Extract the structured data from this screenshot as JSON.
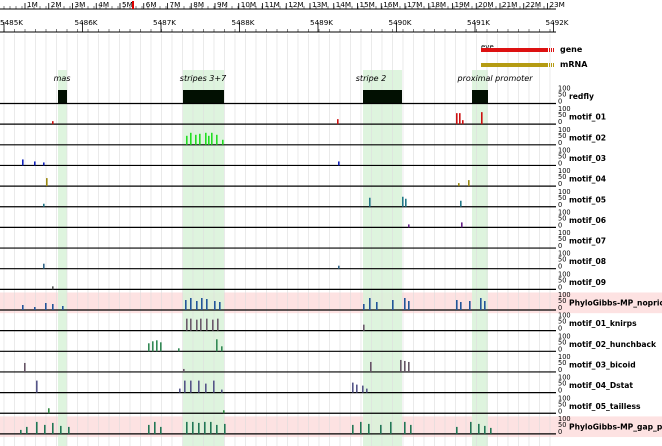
{
  "chromosome_ruler": {
    "labels": [
      "1M",
      "2M",
      "3M",
      "4M",
      "5M",
      "6M",
      "7M",
      "8M",
      "9M",
      "10M",
      "11M",
      "12M",
      "13M",
      "14M",
      "15M",
      "16M",
      "17M",
      "18M",
      "19M",
      "20M",
      "21M",
      "22M",
      "23M"
    ]
  },
  "position_ruler": {
    "labels": [
      "5485K",
      "5486K",
      "5487K",
      "5488K",
      "5489K",
      "5490K",
      "5491K",
      "5492K"
    ]
  },
  "annotations": {
    "gene": {
      "name": "eve",
      "label": "gene",
      "color": "#dd1111"
    },
    "mrna": {
      "label": "mRNA",
      "color": "#b59b12"
    }
  },
  "regions": [
    {
      "label": "mas"
    },
    {
      "label": "stripes 3+7"
    },
    {
      "label": "stripe 2"
    },
    {
      "label": "proximal promoter"
    }
  ],
  "axis_ticks": {
    "top": "100",
    "mid": "50",
    "bottom": "0"
  },
  "tracks": [
    {
      "label": "redfly",
      "color": "#000000"
    },
    {
      "label": "motif_01",
      "color": "#cc1111"
    },
    {
      "label": "motif_02",
      "color": "#22dd22"
    },
    {
      "label": "motif_03",
      "color": "#1122bb"
    },
    {
      "label": "motif_04",
      "color": "#998811"
    },
    {
      "label": "motif_05",
      "color": "#227788"
    },
    {
      "label": "motif_06",
      "color": "#662288"
    },
    {
      "label": "motif_07",
      "color": "#777777"
    },
    {
      "label": "motif_08",
      "color": "#336688"
    },
    {
      "label": "motif_09",
      "color": "#555555"
    },
    {
      "label": "PhyloGibbs-MP_noprior",
      "color": "#225599"
    },
    {
      "label": "motif_01_knirps",
      "color": "#6a5a6a"
    },
    {
      "label": "motif_02_hunchback",
      "color": "#338855"
    },
    {
      "label": "motif_03_bicoid",
      "color": "#665566"
    },
    {
      "label": "motif_04_Dstat",
      "color": "#555588"
    },
    {
      "label": "motif_05_tailless",
      "color": "#338844"
    },
    {
      "label": "PhyloGibbs-MP_gap_pri",
      "color": "#227755"
    }
  ],
  "colors": {
    "highlight": "#d8f2d8",
    "pink_band": "#fde2e2",
    "grid": "#dddddd",
    "chrom_marker": "#dd0000"
  }
}
